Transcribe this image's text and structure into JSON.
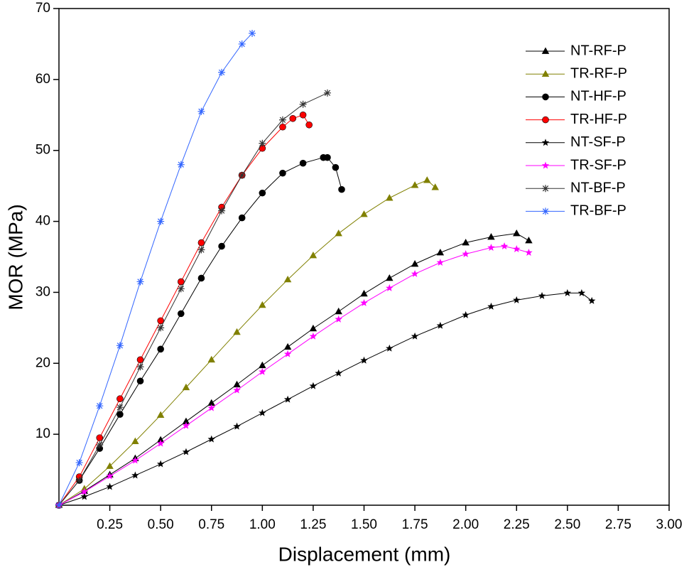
{
  "chart_data": {
    "type": "line",
    "xlabel": "Displacement (mm)",
    "ylabel": "MOR (MPa)",
    "xlim": [
      0,
      3
    ],
    "ylim": [
      0,
      70
    ],
    "xticks": [
      0.25,
      {
        "value": 0.5,
        "label": "0.50"
      },
      0.75,
      {
        "value": 1,
        "label": "1.00"
      },
      1.25,
      {
        "value": 1.5,
        "label": "1.50"
      },
      1.75,
      {
        "value": 2,
        "label": "2.00"
      },
      2.25,
      {
        "value": 2.5,
        "label": "2.50"
      },
      2.75,
      {
        "value": 3,
        "label": "3.00"
      }
    ],
    "yticks": [
      10,
      20,
      30,
      40,
      50,
      60,
      70
    ],
    "legend": "upper right",
    "series": [
      {
        "name": "NT-RF-P",
        "color": "#000000",
        "marker": "triangle",
        "x": [
          0,
          0.125,
          0.25,
          0.375,
          0.5,
          0.625,
          0.75,
          0.875,
          1.0,
          1.125,
          1.25,
          1.375,
          1.5,
          1.625,
          1.75,
          1.875,
          2.0,
          2.125,
          2.25,
          2.31
        ],
        "values": [
          0,
          2,
          4.3,
          6.6,
          9.2,
          11.8,
          14.4,
          17,
          19.7,
          22.3,
          24.9,
          27.3,
          29.8,
          32,
          34,
          35.6,
          37,
          37.8,
          38.3,
          37.3
        ]
      },
      {
        "name": "TR-RF-P",
        "color": "#808000",
        "marker": "triangle",
        "x": [
          0,
          0.125,
          0.25,
          0.375,
          0.5,
          0.625,
          0.75,
          0.875,
          1.0,
          1.125,
          1.25,
          1.375,
          1.5,
          1.625,
          1.75,
          1.81,
          1.85
        ],
        "values": [
          0,
          2.3,
          5.5,
          9,
          12.7,
          16.6,
          20.5,
          24.4,
          28.2,
          31.8,
          35.2,
          38.3,
          41,
          43.3,
          45.1,
          45.8,
          44.8
        ]
      },
      {
        "name": "NT-HF-P",
        "color": "#000000",
        "marker": "sphere",
        "x": [
          0,
          0.1,
          0.2,
          0.3,
          0.4,
          0.5,
          0.6,
          0.7,
          0.8,
          0.9,
          1.0,
          1.1,
          1.2,
          1.3,
          1.32,
          1.36,
          1.39
        ],
        "values": [
          0,
          3.5,
          8,
          12.8,
          17.5,
          22,
          27,
          32,
          36.5,
          40.5,
          44,
          46.8,
          48.2,
          49,
          49,
          47.6,
          44.5
        ]
      },
      {
        "name": "TR-HF-P",
        "color": "#ff0000",
        "marker": "sphere",
        "x": [
          0,
          0.1,
          0.2,
          0.3,
          0.4,
          0.5,
          0.6,
          0.7,
          0.8,
          0.9,
          1.0,
          1.1,
          1.15,
          1.2,
          1.23
        ],
        "values": [
          0,
          4,
          9.5,
          15,
          20.5,
          26,
          31.5,
          37,
          42,
          46.5,
          50.3,
          53.3,
          54.5,
          55,
          53.6
        ]
      },
      {
        "name": "NT-SF-P",
        "color": "#000000",
        "marker": "star",
        "x": [
          0,
          0.125,
          0.25,
          0.375,
          0.5,
          0.625,
          0.75,
          0.875,
          1.0,
          1.125,
          1.25,
          1.375,
          1.5,
          1.625,
          1.75,
          1.875,
          2.0,
          2.125,
          2.25,
          2.375,
          2.5,
          2.57,
          2.62
        ],
        "values": [
          0,
          1.2,
          2.6,
          4.2,
          5.8,
          7.5,
          9.3,
          11.1,
          13,
          14.9,
          16.8,
          18.6,
          20.4,
          22.1,
          23.8,
          25.3,
          26.8,
          28,
          28.9,
          29.5,
          29.9,
          29.9,
          28.8
        ]
      },
      {
        "name": "TR-SF-P",
        "color": "#ff00ff",
        "marker": "star",
        "x": [
          0,
          0.125,
          0.25,
          0.375,
          0.5,
          0.625,
          0.75,
          0.875,
          1.0,
          1.125,
          1.25,
          1.375,
          1.5,
          1.625,
          1.75,
          1.875,
          2.0,
          2.125,
          2.19,
          2.25,
          2.31
        ],
        "values": [
          0,
          1.9,
          4.1,
          6.3,
          8.7,
          11.2,
          13.7,
          16.2,
          18.8,
          21.3,
          23.8,
          26.2,
          28.5,
          30.6,
          32.6,
          34.2,
          35.4,
          36.3,
          36.5,
          36.1,
          35.6
        ]
      },
      {
        "name": "NT-BF-P",
        "color": "#333333",
        "marker": "asterisk",
        "x": [
          0,
          0.1,
          0.2,
          0.3,
          0.4,
          0.5,
          0.6,
          0.7,
          0.8,
          0.9,
          1.0,
          1.1,
          1.2,
          1.32
        ],
        "values": [
          0,
          3.5,
          8.5,
          13.8,
          19.5,
          25,
          30.5,
          36,
          41.5,
          46.5,
          51,
          54.3,
          56.5,
          58.1
        ]
      },
      {
        "name": "TR-BF-P",
        "color": "#3366ff",
        "marker": "asterisk",
        "x": [
          0,
          0.1,
          0.2,
          0.3,
          0.4,
          0.5,
          0.6,
          0.7,
          0.8,
          0.9,
          0.95
        ],
        "values": [
          0,
          6,
          14,
          22.5,
          31.5,
          40,
          48,
          55.5,
          61,
          65,
          66.5
        ]
      }
    ]
  }
}
